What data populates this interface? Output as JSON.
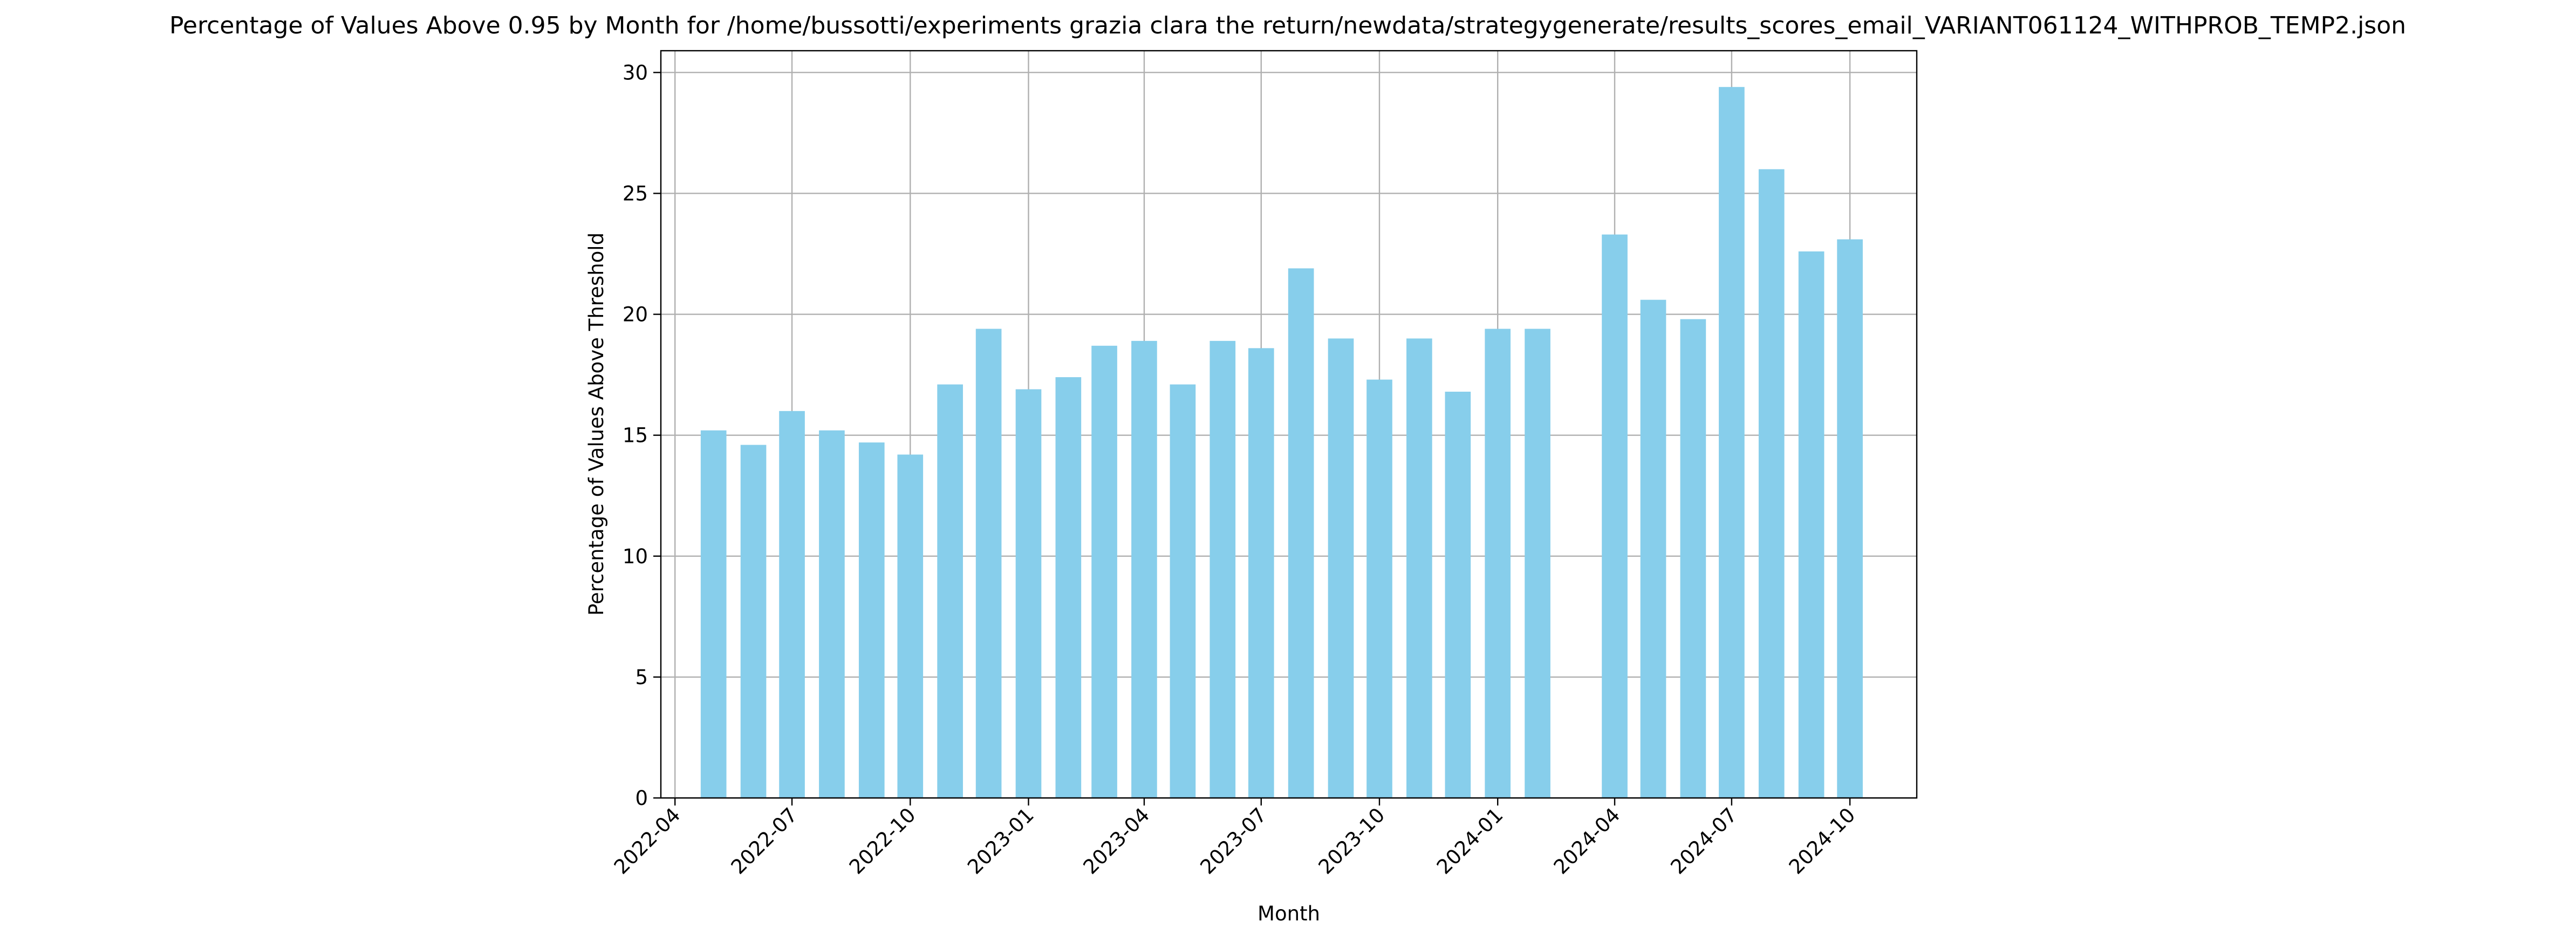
{
  "chart_data": {
    "type": "bar",
    "title": "Percentage of Values Above 0.95 by Month for /home/bussotti/experiments grazia clara the return/newdata/strategygenerate/results_scores_email_VARIANT061124_WITHPROB_TEMP2.json",
    "xlabel": "Month",
    "ylabel": "Percentage of Values Above Threshold",
    "ylim": [
      0,
      30.9
    ],
    "yticks": [
      0,
      5,
      10,
      15,
      20,
      25,
      30
    ],
    "xlim": [
      "2022-03-21",
      "2024-11-22"
    ],
    "xticks": [
      "2022-04",
      "2022-07",
      "2022-10",
      "2023-01",
      "2023-04",
      "2023-07",
      "2023-10",
      "2024-01",
      "2024-04",
      "2024-07",
      "2024-10"
    ],
    "grid": true,
    "bar_color": "#87ceeb",
    "bar_width_days": 20,
    "data": [
      {
        "month": "2022-05",
        "value": 15.2
      },
      {
        "month": "2022-06",
        "value": 14.6
      },
      {
        "month": "2022-07",
        "value": 16.0
      },
      {
        "month": "2022-08",
        "value": 15.2
      },
      {
        "month": "2022-09",
        "value": 14.7
      },
      {
        "month": "2022-10",
        "value": 14.2
      },
      {
        "month": "2022-11",
        "value": 17.1
      },
      {
        "month": "2022-12",
        "value": 19.4
      },
      {
        "month": "2023-01",
        "value": 16.9
      },
      {
        "month": "2023-02",
        "value": 17.4
      },
      {
        "month": "2023-03",
        "value": 18.7
      },
      {
        "month": "2023-04",
        "value": 18.9
      },
      {
        "month": "2023-05",
        "value": 17.1
      },
      {
        "month": "2023-06",
        "value": 18.9
      },
      {
        "month": "2023-07",
        "value": 18.6
      },
      {
        "month": "2023-08",
        "value": 21.9
      },
      {
        "month": "2023-09",
        "value": 19.0
      },
      {
        "month": "2023-10",
        "value": 17.3
      },
      {
        "month": "2023-11",
        "value": 19.0
      },
      {
        "month": "2023-12",
        "value": 16.8
      },
      {
        "month": "2024-01",
        "value": 19.4
      },
      {
        "month": "2024-02",
        "value": 19.4
      },
      {
        "month": "2024-04",
        "value": 23.3
      },
      {
        "month": "2024-05",
        "value": 20.6
      },
      {
        "month": "2024-06",
        "value": 19.8
      },
      {
        "month": "2024-07",
        "value": 29.4
      },
      {
        "month": "2024-08",
        "value": 26.0
      },
      {
        "month": "2024-09",
        "value": 22.6
      },
      {
        "month": "2024-10",
        "value": 23.1
      }
    ]
  }
}
